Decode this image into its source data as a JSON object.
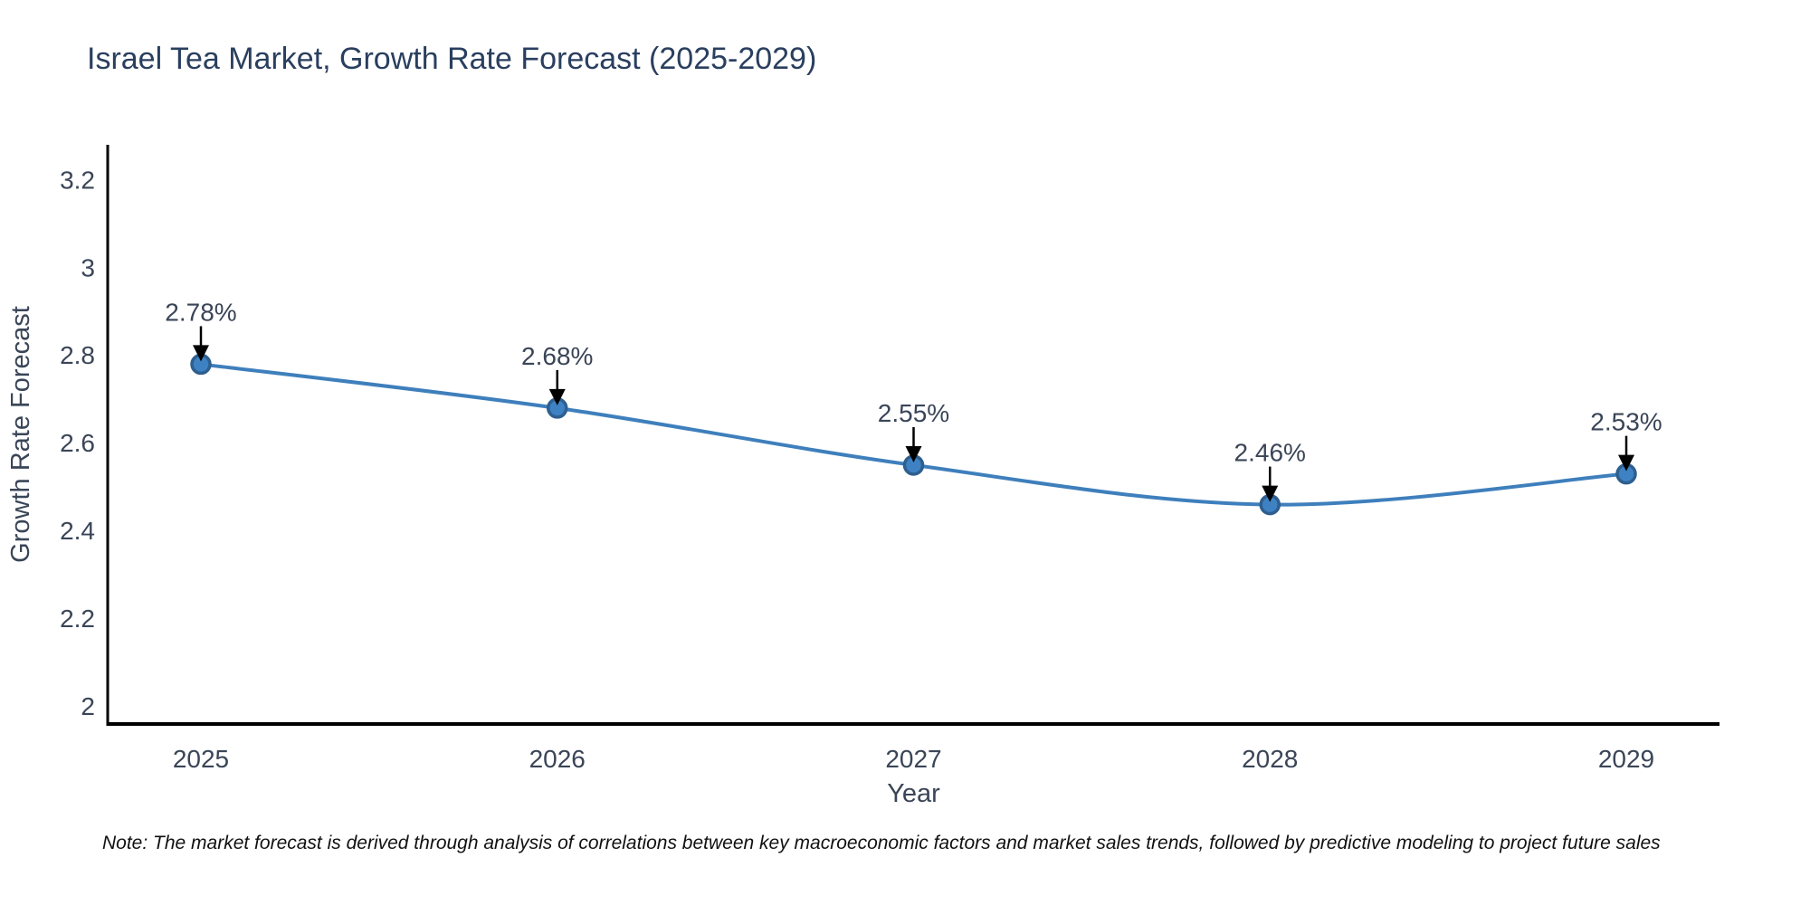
{
  "title": "Israel Tea Market, Growth Rate Forecast (2025-2029)",
  "note": "Note: The market forecast is derived through analysis of correlations between key macroeconomic factors and market sales trends, followed by predictive modeling to project future sales",
  "chart_data": {
    "type": "line",
    "title": "Israel Tea Market, Growth Rate Forecast (2025-2029)",
    "xlabel": "Year",
    "ylabel": "Growth Rate Forecast",
    "categories": [
      "2025",
      "2026",
      "2027",
      "2028",
      "2029"
    ],
    "values": [
      2.78,
      2.68,
      2.55,
      2.46,
      2.53
    ],
    "point_labels": [
      "2.78%",
      "2.68%",
      "2.55%",
      "2.46%",
      "2.53%"
    ],
    "yticks": [
      3.2,
      3.0,
      2.8,
      2.6,
      2.4,
      2.2,
      2.0
    ],
    "ytick_labels": [
      "3.2",
      "3",
      "2.8",
      "2.6",
      "2.4",
      "2.2",
      "2"
    ],
    "ylim": [
      1.96,
      3.28
    ],
    "grid": false,
    "legend": "none",
    "line_smooth": true,
    "colors": {
      "line": "#3e7fbc",
      "marker_fill": "#3e82c4",
      "marker_edge": "#2e5f8f",
      "axis": "#000000",
      "tick_text": "#3a4557",
      "annotation_text": "#3a4557",
      "arrow": "#000000",
      "title": "#2a3f5f",
      "axis_title": "#3a4557"
    }
  }
}
